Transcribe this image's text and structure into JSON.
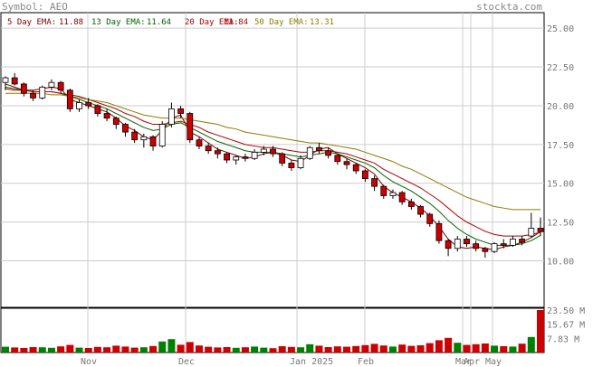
{
  "header": {
    "symbol_label": "Symbol: AEO",
    "brand": "stockta.com"
  },
  "legend": [
    {
      "label": "5 Day EMA:",
      "value": "11.88",
      "color": "#7d0000"
    },
    {
      "label": "13 Day EMA:",
      "value": "11.64",
      "color": "#006400"
    },
    {
      "label": "20 Day EMA:",
      "value": "11.84",
      "color": "#b00000"
    },
    {
      "label": "50 Day EMA:",
      "value": "13.31",
      "color": "#8b7d00"
    }
  ],
  "colors": {
    "up_candle": "#ffffff",
    "down_candle": "#cc0000",
    "candle_outline": "#000000",
    "volume_up": "#008000",
    "volume_down": "#cc0000",
    "grid": "#cccccc",
    "ema5": "#7d0000",
    "ema13": "#006400",
    "ema20": "#b00000",
    "ema50": "#8b7d00"
  },
  "chart_data": {
    "type": "candlestick",
    "price_ticks": [
      "25.00",
      "22.50",
      "20.00",
      "17.50",
      "15.00",
      "12.50",
      "10.00"
    ],
    "volume_ticks": [
      "23.50 M",
      "15.67 M",
      "7.83 M"
    ],
    "x_labels": [
      "Nov",
      "Dec",
      "Jan 2025",
      "Feb",
      "Mar",
      "Apr",
      "May"
    ],
    "ylim": [
      7.0,
      26.0
    ],
    "volume_max": 23.5,
    "ema_series": [
      {
        "name": "5 Day EMA",
        "values": [
          21.4,
          21.2,
          21.0,
          21.0,
          21.1,
          21.2,
          21.1,
          20.4,
          20.2,
          20.0,
          19.8,
          19.6,
          19.2,
          18.7,
          18.4,
          18.0,
          17.8,
          18.4,
          19.2,
          19.4,
          18.3,
          18.0,
          17.6,
          17.2,
          17.0,
          16.8,
          16.6,
          16.7,
          16.9,
          17.0,
          16.8,
          16.5,
          16.4,
          16.8,
          17.2,
          17.3,
          16.9,
          16.6,
          16.3,
          16.0,
          15.6,
          14.8,
          14.4,
          14.1,
          13.8,
          13.4,
          12.9,
          12.2,
          11.4,
          10.9,
          10.8,
          10.9,
          10.8,
          10.7,
          10.9,
          11.0,
          11.2,
          11.5,
          11.88
        ]
      },
      {
        "name": "13 Day EMA",
        "values": [
          21.2,
          21.1,
          21.0,
          20.9,
          20.9,
          20.9,
          20.8,
          20.6,
          20.4,
          20.2,
          20.0,
          19.8,
          19.5,
          19.2,
          18.9,
          18.6,
          18.4,
          18.5,
          18.8,
          18.9,
          18.6,
          18.3,
          18.0,
          17.7,
          17.5,
          17.3,
          17.1,
          17.0,
          17.0,
          17.0,
          16.9,
          16.8,
          16.7,
          16.8,
          16.9,
          17.0,
          16.9,
          16.7,
          16.5,
          16.3,
          16.0,
          15.5,
          15.1,
          14.8,
          14.5,
          14.1,
          13.7,
          13.2,
          12.6,
          12.1,
          11.7,
          11.4,
          11.2,
          11.0,
          11.0,
          11.0,
          11.1,
          11.3,
          11.64
        ]
      },
      {
        "name": "20 Day EMA",
        "values": [
          21.1,
          21.0,
          21.0,
          20.9,
          20.9,
          20.9,
          20.8,
          20.7,
          20.6,
          20.4,
          20.2,
          20.0,
          19.8,
          19.5,
          19.3,
          19.0,
          18.8,
          18.8,
          18.9,
          19.0,
          18.8,
          18.6,
          18.3,
          18.1,
          17.9,
          17.7,
          17.5,
          17.4,
          17.3,
          17.3,
          17.2,
          17.1,
          17.0,
          17.0,
          17.1,
          17.1,
          17.0,
          16.9,
          16.7,
          16.5,
          16.3,
          15.9,
          15.6,
          15.3,
          15.0,
          14.7,
          14.3,
          13.9,
          13.4,
          12.9,
          12.5,
          12.2,
          11.9,
          11.7,
          11.6,
          11.6,
          11.6,
          11.7,
          11.84
        ]
      },
      {
        "name": "50 Day EMA",
        "values": [
          20.8,
          20.8,
          20.8,
          20.8,
          20.8,
          20.7,
          20.7,
          20.6,
          20.5,
          20.4,
          20.3,
          20.2,
          20.0,
          19.8,
          19.6,
          19.4,
          19.3,
          19.2,
          19.2,
          19.2,
          19.1,
          19.0,
          18.9,
          18.8,
          18.6,
          18.5,
          18.3,
          18.2,
          18.1,
          18.0,
          17.9,
          17.8,
          17.7,
          17.6,
          17.6,
          17.5,
          17.4,
          17.3,
          17.2,
          17.0,
          16.8,
          16.6,
          16.4,
          16.1,
          15.9,
          15.6,
          15.3,
          15.0,
          14.7,
          14.4,
          14.1,
          13.9,
          13.7,
          13.5,
          13.4,
          13.3,
          13.3,
          13.3,
          13.31
        ]
      }
    ],
    "ohlc": [
      [
        21.5,
        21.9,
        21.0,
        21.8
      ],
      [
        21.8,
        22.1,
        21.3,
        21.4
      ],
      [
        21.4,
        21.5,
        20.6,
        20.8
      ],
      [
        20.8,
        21.0,
        20.3,
        20.5
      ],
      [
        20.5,
        21.3,
        20.4,
        21.2
      ],
      [
        21.2,
        21.7,
        21.0,
        21.5
      ],
      [
        21.5,
        21.6,
        20.8,
        21.0
      ],
      [
        21.0,
        21.1,
        19.6,
        19.8
      ],
      [
        19.8,
        20.4,
        19.6,
        20.2
      ],
      [
        20.2,
        20.5,
        19.8,
        20.0
      ],
      [
        20.0,
        20.1,
        19.3,
        19.5
      ],
      [
        19.5,
        19.8,
        19.0,
        19.2
      ],
      [
        19.2,
        19.3,
        18.5,
        18.8
      ],
      [
        18.8,
        18.9,
        18.0,
        18.3
      ],
      [
        18.3,
        18.5,
        17.6,
        17.8
      ],
      [
        17.8,
        18.2,
        17.3,
        18.0
      ],
      [
        18.0,
        18.1,
        17.1,
        17.4
      ],
      [
        17.4,
        19.0,
        17.3,
        18.8
      ],
      [
        18.8,
        20.2,
        18.6,
        19.8
      ],
      [
        19.8,
        20.0,
        19.2,
        19.5
      ],
      [
        19.5,
        19.6,
        17.6,
        17.8
      ],
      [
        17.8,
        18.0,
        17.2,
        17.4
      ],
      [
        17.4,
        17.6,
        16.9,
        17.1
      ],
      [
        17.1,
        17.3,
        16.6,
        16.9
      ],
      [
        16.9,
        17.0,
        16.3,
        16.5
      ],
      [
        16.5,
        16.8,
        16.2,
        16.7
      ],
      [
        16.7,
        16.9,
        16.4,
        16.6
      ],
      [
        16.6,
        17.2,
        16.5,
        17.0
      ],
      [
        17.0,
        17.4,
        16.8,
        17.2
      ],
      [
        17.2,
        17.4,
        16.7,
        16.9
      ],
      [
        16.9,
        17.0,
        16.1,
        16.3
      ],
      [
        16.3,
        16.5,
        15.8,
        16.0
      ],
      [
        16.0,
        16.8,
        15.9,
        16.6
      ],
      [
        16.6,
        17.4,
        16.5,
        17.3
      ],
      [
        17.3,
        17.6,
        16.9,
        17.1
      ],
      [
        17.1,
        17.3,
        16.6,
        16.8
      ],
      [
        16.8,
        16.9,
        16.2,
        16.4
      ],
      [
        16.4,
        16.6,
        15.9,
        16.2
      ],
      [
        16.2,
        16.3,
        15.6,
        15.8
      ],
      [
        15.8,
        15.9,
        15.1,
        15.3
      ],
      [
        15.3,
        15.5,
        14.5,
        14.8
      ],
      [
        14.8,
        14.9,
        14.0,
        14.2
      ],
      [
        14.2,
        14.6,
        14.0,
        14.4
      ],
      [
        14.4,
        14.5,
        13.6,
        13.8
      ],
      [
        13.8,
        14.0,
        13.3,
        13.5
      ],
      [
        13.5,
        13.6,
        12.8,
        13.0
      ],
      [
        13.0,
        13.1,
        12.2,
        12.4
      ],
      [
        12.4,
        12.6,
        11.1,
        11.3
      ],
      [
        11.3,
        11.4,
        10.3,
        10.8
      ],
      [
        10.8,
        11.6,
        10.6,
        11.4
      ],
      [
        11.4,
        11.6,
        10.9,
        11.1
      ],
      [
        11.1,
        11.3,
        10.6,
        10.8
      ],
      [
        10.8,
        10.9,
        10.2,
        10.6
      ],
      [
        10.6,
        11.2,
        10.5,
        11.1
      ],
      [
        11.1,
        11.4,
        10.8,
        11.0
      ],
      [
        11.0,
        11.6,
        10.9,
        11.4
      ],
      [
        11.4,
        11.6,
        11.0,
        11.2
      ],
      [
        11.6,
        13.1,
        11.5,
        12.1
      ],
      [
        12.1,
        12.8,
        11.6,
        11.88
      ]
    ],
    "volume": [
      3.2,
      2.8,
      2.5,
      3.0,
      2.9,
      2.6,
      3.4,
      4.2,
      2.7,
      2.5,
      3.1,
      2.9,
      3.8,
      3.3,
      2.7,
      2.9,
      3.6,
      6.1,
      7.4,
      4.3,
      5.8,
      3.9,
      3.2,
      2.8,
      3.0,
      2.6,
      2.9,
      3.3,
      2.7,
      2.4,
      3.5,
      3.1,
      2.9,
      4.6,
      3.8,
      3.0,
      3.4,
      3.2,
      3.6,
      4.1,
      4.8,
      3.9,
      3.3,
      4.4,
      3.7,
      4.0,
      5.2,
      6.8,
      8.1,
      5.4,
      4.2,
      4.6,
      5.0,
      3.8,
      3.5,
      3.3,
      4.9,
      8.6,
      23.5
    ]
  }
}
